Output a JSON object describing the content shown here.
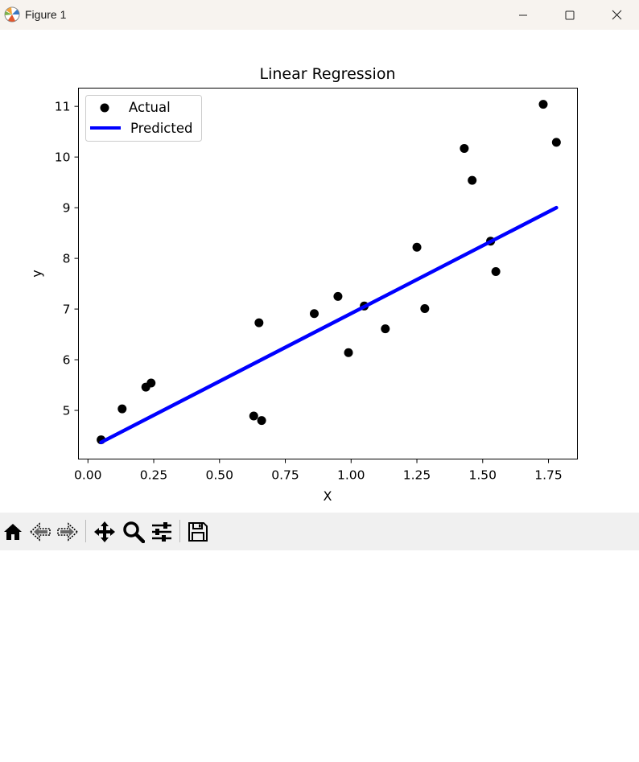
{
  "window": {
    "title": "Figure 1"
  },
  "toolbar": {
    "buttons": [
      "home-icon",
      "back-icon",
      "forward-icon",
      "pan-icon",
      "zoom-icon",
      "configure-subplots-icon",
      "save-icon"
    ]
  },
  "chart_data": {
    "type": "scatter",
    "title": "Linear Regression",
    "xlabel": "X",
    "ylabel": "y",
    "xlim": [
      -0.036,
      1.86
    ],
    "ylim": [
      4.04,
      11.36
    ],
    "xticks": [
      "0.00",
      "0.25",
      "0.50",
      "0.75",
      "1.00",
      "1.25",
      "1.50",
      "1.75"
    ],
    "yticks": [
      "5",
      "6",
      "7",
      "8",
      "9",
      "10",
      "11"
    ],
    "grid": false,
    "legend_position": "top-left",
    "series": [
      {
        "name": "Actual",
        "kind": "scatter",
        "color": "#000000",
        "x": [
          0.05,
          0.13,
          0.22,
          0.24,
          0.63,
          0.65,
          0.66,
          0.86,
          0.95,
          0.99,
          1.05,
          1.13,
          1.25,
          1.28,
          1.43,
          1.46,
          1.53,
          1.55,
          1.73,
          1.78
        ],
        "y": [
          4.42,
          5.03,
          5.46,
          5.54,
          4.89,
          6.73,
          4.8,
          6.91,
          7.25,
          6.14,
          7.06,
          6.61,
          8.22,
          7.01,
          10.17,
          9.54,
          8.34,
          7.74,
          11.04,
          10.29
        ]
      },
      {
        "name": "Predicted",
        "kind": "line",
        "color": "#0000ff",
        "x": [
          0.05,
          1.78
        ],
        "y": [
          4.37,
          9.0
        ]
      }
    ]
  }
}
